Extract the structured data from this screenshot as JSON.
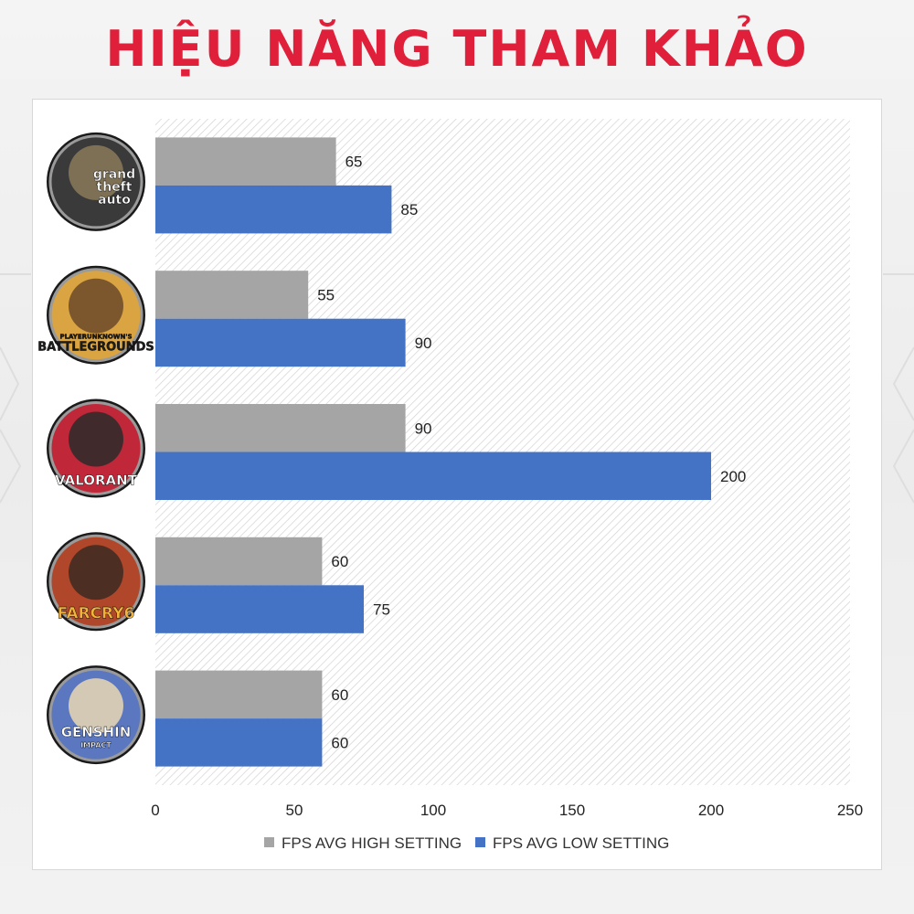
{
  "page": {
    "title": "HIỆU NĂNG THAM KHẢO"
  },
  "colors": {
    "title": "#e0203a",
    "high_series": "#a5a5a5",
    "low_series": "#4472c4"
  },
  "games": [
    {
      "id": "gta",
      "icon": "gta-v-logo-icon",
      "logo_lines": [
        "grand",
        "theft",
        "auto"
      ]
    },
    {
      "id": "pubg",
      "icon": "pubg-logo-icon",
      "logo_lines": [
        "PLAYERUNKNOWN'S",
        "BATTLEGROUNDS"
      ]
    },
    {
      "id": "valorant",
      "icon": "valorant-logo-icon",
      "logo_lines": [
        "VALORANT"
      ]
    },
    {
      "id": "farcry",
      "icon": "far-cry-6-logo-icon",
      "logo_lines": [
        "FARCRY6"
      ]
    },
    {
      "id": "genshin",
      "icon": "genshin-impact-logo-icon",
      "logo_lines": [
        "GENSHIN",
        "IMPACT"
      ]
    }
  ],
  "chart_data": {
    "type": "bar",
    "orientation": "horizontal",
    "categories": [
      "",
      "",
      "",
      "",
      ""
    ],
    "series": [
      {
        "name": "FPS AVG HIGH SETTING",
        "color": "#a5a5a5",
        "values": [
          65,
          55,
          90,
          60,
          60
        ]
      },
      {
        "name": "FPS AVG LOW SETTING",
        "color": "#4472c4",
        "values": [
          85,
          90,
          200,
          75,
          60
        ]
      }
    ],
    "xlim": [
      0,
      250
    ],
    "xticks": [
      0,
      50,
      100,
      150,
      200,
      250
    ],
    "grid": false,
    "plot_background": "diagonal-hatch",
    "legend_position": "bottom"
  }
}
